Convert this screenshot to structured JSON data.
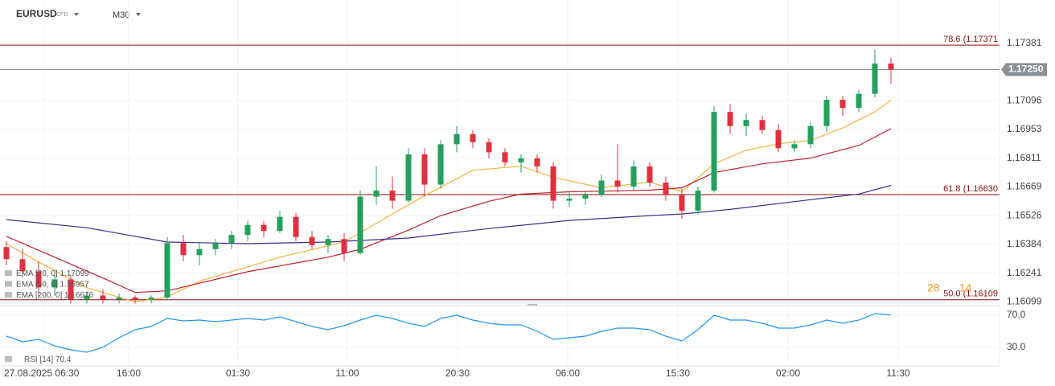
{
  "header": {
    "symbol": "EURUSD",
    "instrument": "CFD",
    "timeframe": "M30"
  },
  "chart_data": {
    "type": "candlestick",
    "open": [
      1.1637,
      1.1631,
      1.1625,
      1.1617,
      1.1621,
      1.1611,
      1.1613,
      1.1611,
      1.1612,
      1.1611,
      1.1612,
      1.1639,
      1.1633,
      1.1636,
      1.1639,
      1.1643,
      1.1648,
      1.1645,
      1.1652,
      1.1642,
      1.1638,
      1.1641,
      1.1634,
      1.1662,
      1.1665,
      1.166,
      1.1683,
      1.1668,
      1.1688,
      1.1693,
      1.1689,
      1.1684,
      1.1679,
      1.1681,
      1.1677,
      1.166,
      1.1661,
      1.1663,
      1.167,
      1.1667,
      1.1677,
      1.1669,
      1.1663,
      1.1655,
      1.1665,
      1.1704,
      1.1697,
      1.17,
      1.1695,
      1.1686,
      1.1688,
      1.1697,
      1.171,
      1.1706,
      1.1713,
      1.1728
    ],
    "high": [
      1.164,
      1.1636,
      1.163,
      1.1624,
      1.1623,
      1.1615,
      1.1616,
      1.1614,
      1.1613,
      1.1613,
      1.1642,
      1.1643,
      1.1639,
      1.1641,
      1.1645,
      1.165,
      1.165,
      1.1655,
      1.1654,
      1.1645,
      1.1643,
      1.1644,
      1.1665,
      1.1677,
      1.1672,
      1.1686,
      1.1686,
      1.169,
      1.1697,
      1.1695,
      1.1691,
      1.1686,
      1.1683,
      1.1683,
      1.1679,
      1.1664,
      1.1665,
      1.1673,
      1.1688,
      1.168,
      1.1679,
      1.1672,
      1.1666,
      1.1667,
      1.1707,
      1.1708,
      1.1703,
      1.1702,
      1.1698,
      1.169,
      1.1699,
      1.1712,
      1.1712,
      1.1715,
      1.1735,
      1.1731
    ],
    "low": [
      1.1628,
      1.1622,
      1.1612,
      1.1613,
      1.1609,
      1.1609,
      1.1609,
      1.1609,
      1.1609,
      1.1609,
      1.1611,
      1.163,
      1.1628,
      1.1633,
      1.1636,
      1.164,
      1.1642,
      1.1644,
      1.164,
      1.1636,
      1.1634,
      1.163,
      1.1633,
      1.1658,
      1.1656,
      1.1659,
      1.1662,
      1.1666,
      1.1684,
      1.1686,
      1.1681,
      1.1677,
      1.1674,
      1.1674,
      1.1656,
      1.1657,
      1.1658,
      1.1662,
      1.1664,
      1.1665,
      1.1667,
      1.166,
      1.1651,
      1.1653,
      1.1664,
      1.1693,
      1.1692,
      1.1693,
      1.1684,
      1.1684,
      1.1686,
      1.1694,
      1.1702,
      1.1704,
      1.1711,
      1.1718
    ],
    "close": [
      1.1631,
      1.1625,
      1.1617,
      1.1621,
      1.1611,
      1.1613,
      1.1611,
      1.1612,
      1.1611,
      1.1612,
      1.1639,
      1.1633,
      1.1636,
      1.1639,
      1.1643,
      1.1648,
      1.1645,
      1.1652,
      1.1642,
      1.1638,
      1.1641,
      1.1634,
      1.1662,
      1.1665,
      1.166,
      1.1683,
      1.1668,
      1.1688,
      1.1693,
      1.1689,
      1.1684,
      1.1679,
      1.1681,
      1.1677,
      1.166,
      1.1661,
      1.1663,
      1.167,
      1.1667,
      1.1677,
      1.1669,
      1.1663,
      1.1655,
      1.1665,
      1.1704,
      1.1697,
      1.17,
      1.1695,
      1.1686,
      1.1688,
      1.1697,
      1.171,
      1.1706,
      1.1713,
      1.1728,
      1.1725
    ],
    "up_color": "#23a05c",
    "down_color": "#e0303f",
    "ylim": [
      1.1608,
      1.17595
    ],
    "yticks": [
      1.17381,
      1.17096,
      1.16953,
      1.16811,
      1.16669,
      1.16526,
      1.16384,
      1.16241,
      1.16099
    ],
    "last_price": {
      "value": 1.1725,
      "label": "1.17250"
    },
    "xticks": [
      {
        "value": 2.35,
        "label": "27.08.2025 06:30"
      },
      {
        "value": 7.6,
        "label": "16:00"
      },
      {
        "value": 14.4,
        "label": "01:30"
      },
      {
        "value": 21.2,
        "label": "11:00"
      },
      {
        "value": 28.05,
        "label": "20:30"
      },
      {
        "value": 34.9,
        "label": "06:00"
      },
      {
        "value": 41.75,
        "label": "15:30"
      },
      {
        "value": 48.6,
        "label": "02:00"
      },
      {
        "value": 55.45,
        "label": "11:30"
      }
    ],
    "series": [
      {
        "name": "EMA [20, 0]",
        "color": "#f2b33d",
        "x": [
          0,
          2,
          5,
          8,
          10,
          12,
          17,
          21,
          24,
          26,
          29,
          32,
          34,
          37,
          40,
          42,
          44,
          46,
          48,
          50,
          52,
          54,
          55
        ],
        "values": [
          1.16387,
          1.16296,
          1.16169,
          1.16098,
          1.16122,
          1.16201,
          1.1632,
          1.16395,
          1.16534,
          1.16625,
          1.16751,
          1.16771,
          1.16716,
          1.16664,
          1.16692,
          1.16644,
          1.16783,
          1.1685,
          1.16882,
          1.16898,
          1.16961,
          1.1704,
          1.17099
        ]
      },
      {
        "name": "EMA [50, 0]",
        "color": "#c0212b",
        "x": [
          0,
          3,
          6,
          8,
          10,
          15,
          20,
          22,
          25,
          27,
          30,
          32,
          35,
          40,
          42,
          44,
          47,
          50,
          53,
          55
        ],
        "values": [
          1.16423,
          1.1632,
          1.16217,
          1.16145,
          1.16153,
          1.16248,
          1.1632,
          1.16359,
          1.16454,
          1.16526,
          1.16597,
          1.16633,
          1.16644,
          1.16652,
          1.16664,
          1.16739,
          1.16783,
          1.16811,
          1.16874,
          1.16957
        ]
      },
      {
        "name": "EMA [200, 0]",
        "color": "#3a2f8f",
        "x": [
          0,
          5,
          10,
          15,
          20,
          25,
          30,
          35,
          40,
          42,
          45,
          50,
          53,
          55
        ],
        "values": [
          1.16506,
          1.16466,
          1.16395,
          1.16387,
          1.16395,
          1.16415,
          1.16462,
          1.16502,
          1.16526,
          1.16534,
          1.16557,
          1.16605,
          1.16633,
          1.16676
        ]
      }
    ],
    "levels": [
      {
        "value": 1.17371,
        "label": "78.6 (1.17371"
      },
      {
        "value": 1.1663,
        "label": "61.8 (1.16630"
      },
      {
        "value": 1.16109,
        "label": "50.0 (1.16109"
      }
    ],
    "level_color": "#8b0f0f",
    "annotations": [
      "28",
      "14"
    ],
    "rsi": {
      "name": "RSI [14]",
      "color": "#2196f3",
      "ylim": [
        7,
        80
      ],
      "yticks": [
        {
          "value": 70,
          "label": "70.0"
        },
        {
          "value": 30,
          "label": "30.0"
        }
      ],
      "values": [
        44,
        37,
        40,
        32,
        27,
        24,
        30,
        42,
        52,
        56,
        66,
        63,
        64,
        62,
        64,
        66,
        64,
        68,
        62,
        56,
        52,
        57,
        64,
        70,
        66,
        60,
        56,
        66,
        70,
        64,
        60,
        58,
        58,
        50,
        40,
        42,
        44,
        50,
        54,
        54,
        52,
        44,
        38,
        52,
        70,
        64,
        64,
        60,
        54,
        54,
        58,
        64,
        60,
        64,
        72,
        70.4
      ]
    }
  }
}
